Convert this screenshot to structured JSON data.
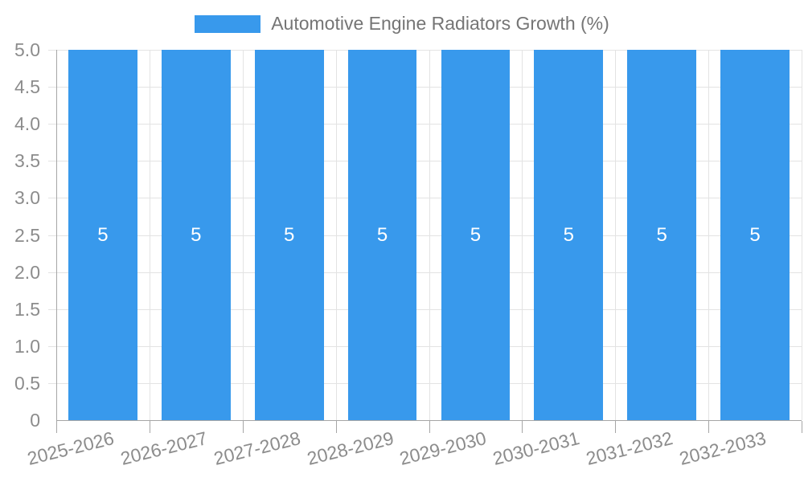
{
  "legend": {
    "label": "Automotive Engine Radiators Growth (%)"
  },
  "chart_data": {
    "type": "bar",
    "title": "Automotive Engine Radiators Growth (%)",
    "categories": [
      "2025-2026",
      "2026-2027",
      "2027-2028",
      "2028-2029",
      "2029-2030",
      "2030-2031",
      "2031-2032",
      "2032-2033"
    ],
    "series": [
      {
        "name": "Automotive Engine Radiators Growth (%)",
        "values": [
          5,
          5,
          5,
          5,
          5,
          5,
          5,
          5
        ]
      }
    ],
    "bar_value_labels": [
      "5",
      "5",
      "5",
      "5",
      "5",
      "5",
      "5",
      "5"
    ],
    "xlabel": "",
    "ylabel": "",
    "ylim": [
      0,
      5
    ],
    "ytick_step": 0.5,
    "yticks": [
      "0",
      "0.5",
      "1.0",
      "1.5",
      "2.0",
      "2.5",
      "3.0",
      "3.5",
      "4.0",
      "4.5",
      "5.0"
    ],
    "grid": true,
    "legend_position": "top",
    "x_label_rotation_deg": -14,
    "colors": {
      "bar": "#3899EC",
      "bar_value_label": "#FFFFFF",
      "axis_line": "#A6A6A6",
      "grid_line": "#E3E3E3",
      "tick_label": "#8C8C8C",
      "legend_text": "#757575",
      "background": "#FFFFFF"
    }
  }
}
